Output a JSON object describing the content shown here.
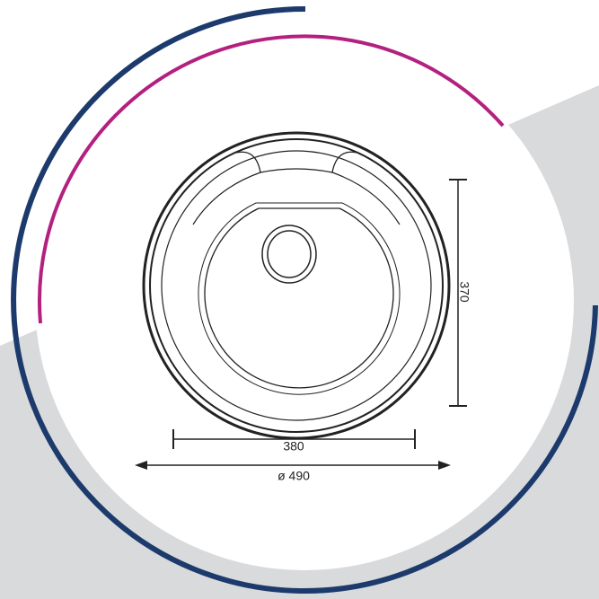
{
  "dimensions": {
    "height": "370",
    "width": "380",
    "diameter": "ø 490"
  }
}
